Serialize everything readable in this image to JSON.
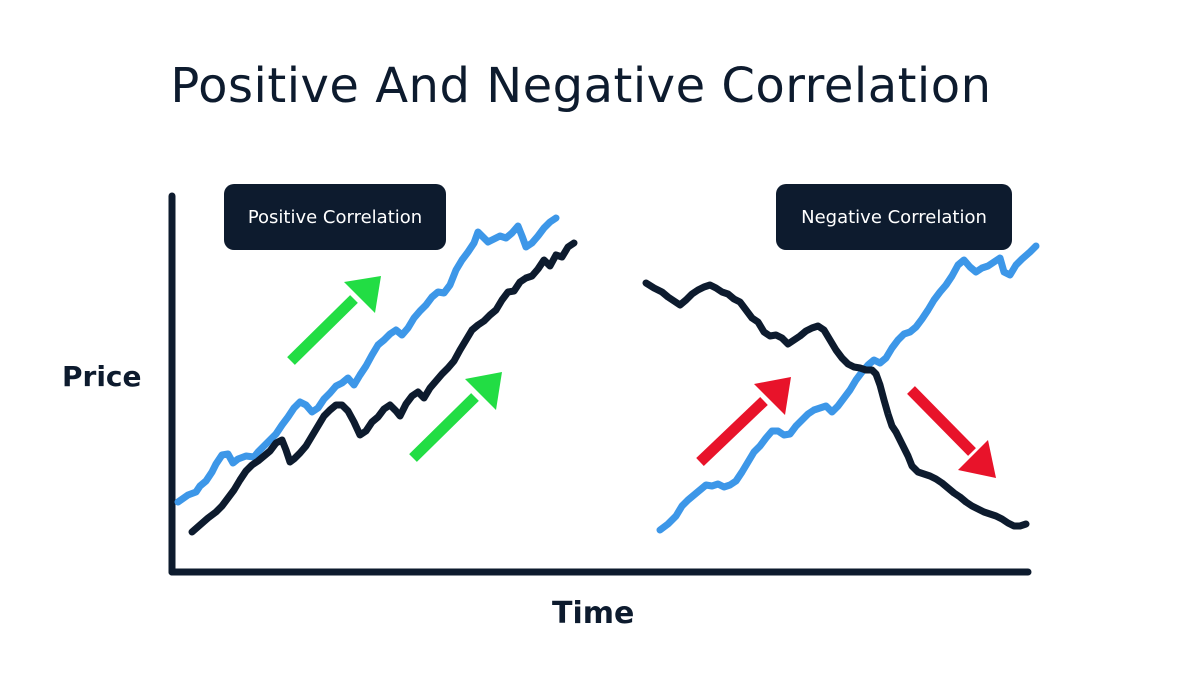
{
  "title": "Positive And Negative Correlation",
  "badges": {
    "positive": "Positive Correlation",
    "negative": "Negative Correlation"
  },
  "axes": {
    "y_label": "Price",
    "x_label": "Time"
  },
  "colors": {
    "dark": "#0d1b2e",
    "blue": "#3d97e8",
    "green": "#22dd44",
    "red": "#e8132a"
  }
}
